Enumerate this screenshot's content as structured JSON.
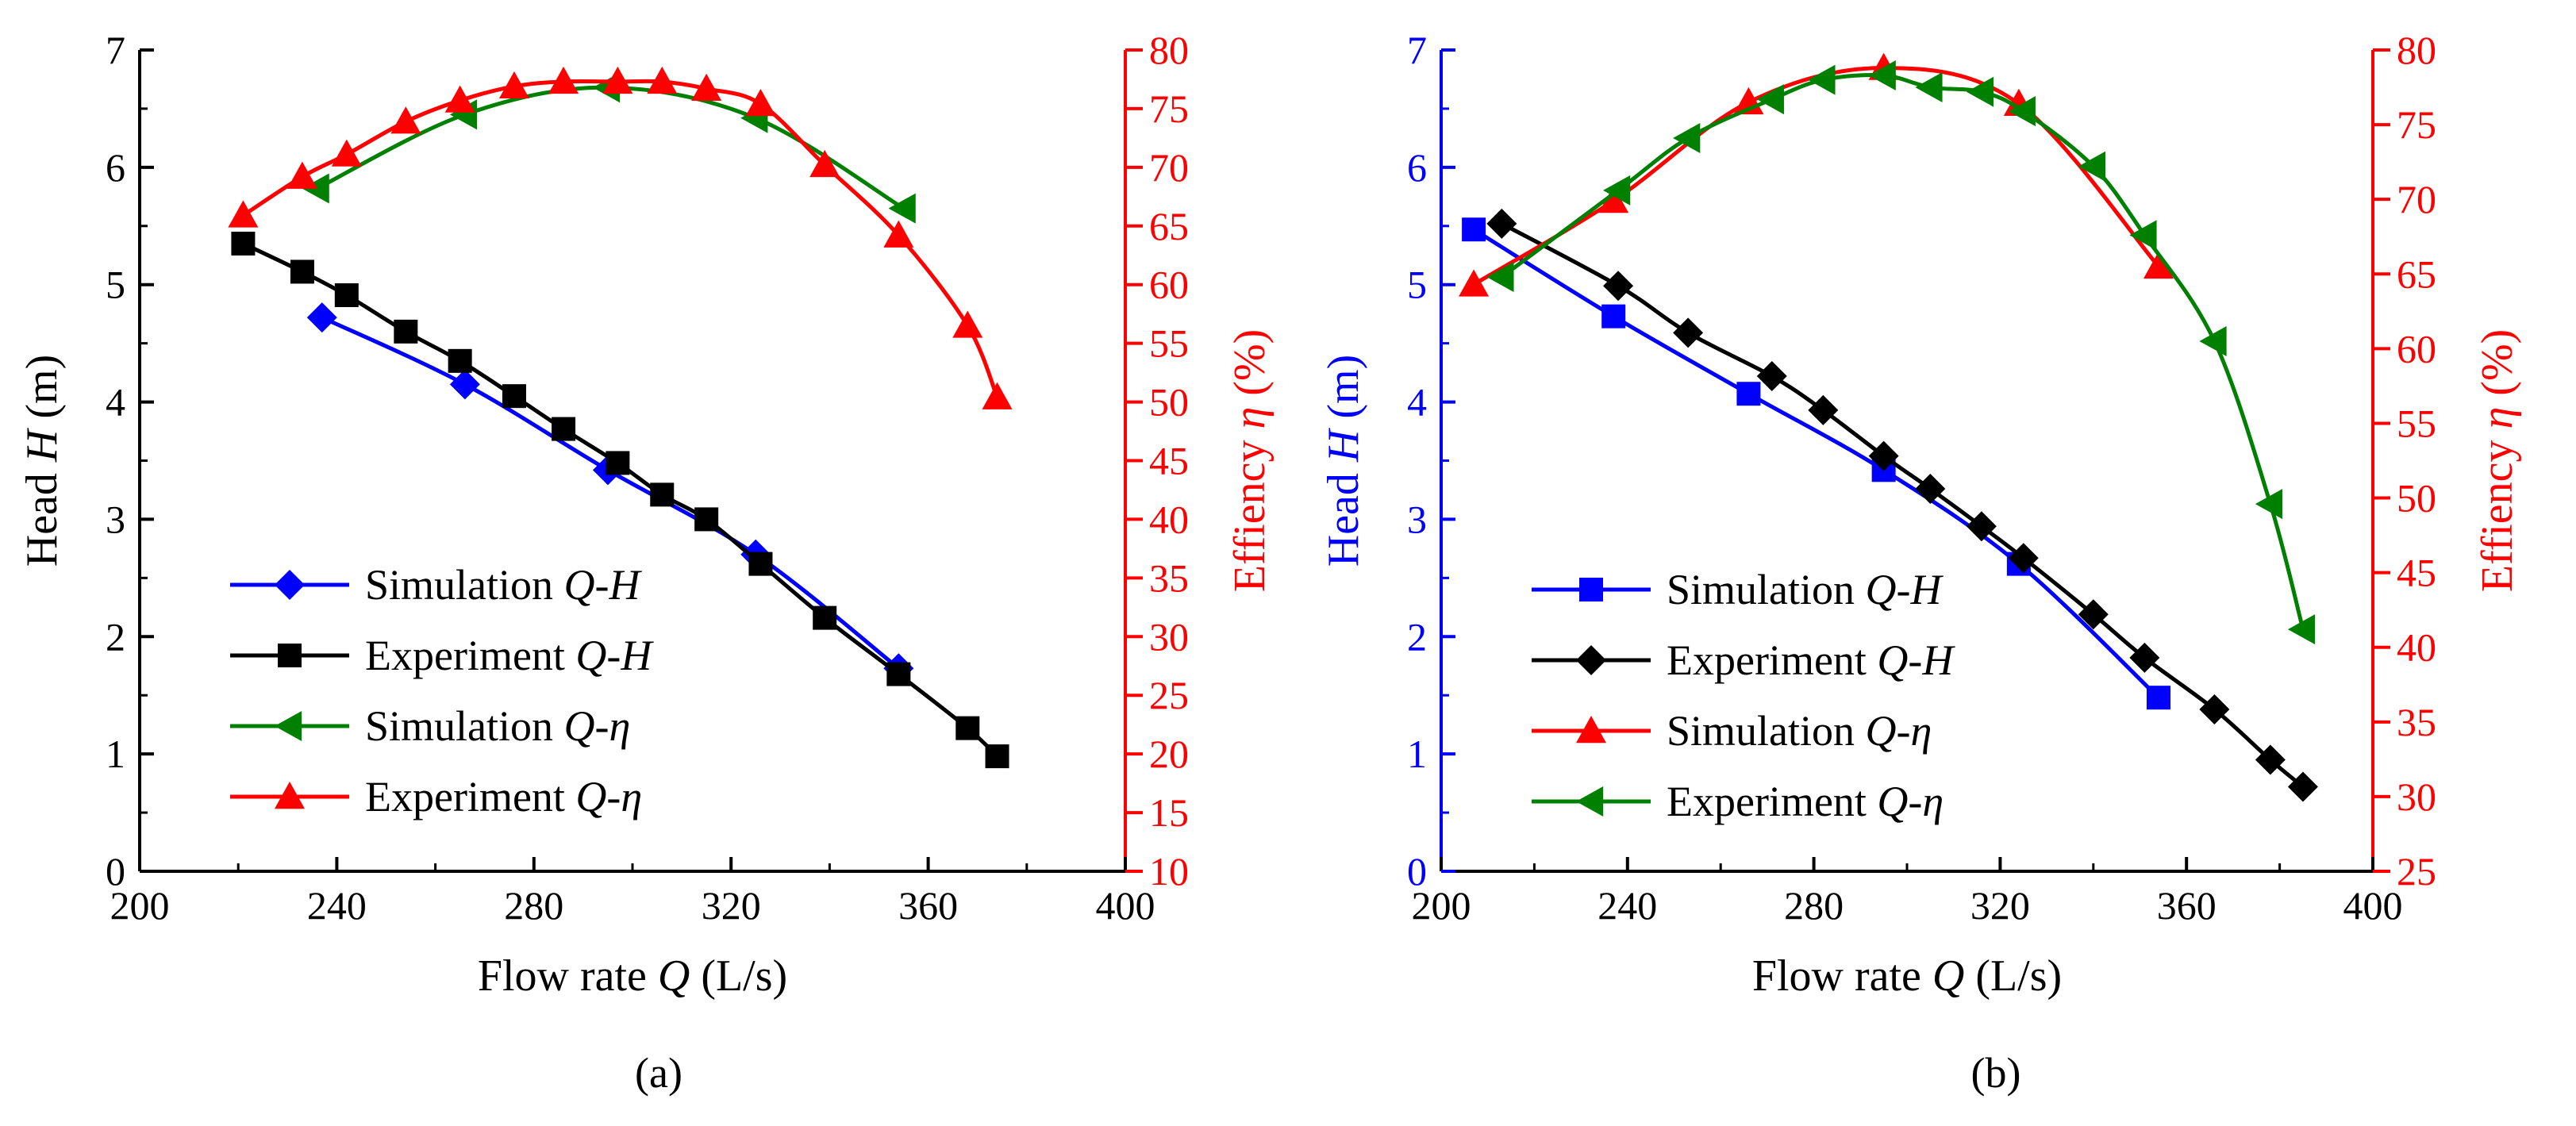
{
  "colors": {
    "blue": "#0000ff",
    "black": "#000000",
    "green": "#008000",
    "red": "#ff0000"
  },
  "chart_data": [
    {
      "type": "line",
      "panel_label": "(a)",
      "xlabel": "Flow rate Q (L/s)",
      "ylabel": "Head H (m)",
      "y2label": "Effiency η (%)",
      "xlim": [
        200,
        400
      ],
      "ylim": [
        0,
        7
      ],
      "y2lim": [
        10,
        80
      ],
      "x_ticks": [
        "200",
        "240",
        "280",
        "320",
        "360",
        "400"
      ],
      "y_ticks": [
        "0",
        "1",
        "2",
        "3",
        "4",
        "5",
        "6",
        "7"
      ],
      "y2_ticks": [
        "10",
        "15",
        "20",
        "25",
        "30",
        "35",
        "40",
        "45",
        "50",
        "55",
        "60",
        "65",
        "70",
        "75",
        "80"
      ],
      "left_axis_color": "#000000",
      "grid": false,
      "legend_position": "bottom-left",
      "series": [
        {
          "name": "Simulation Q-H",
          "axis": "left",
          "color": "#0000ff",
          "marker": "diamond",
          "x": [
            237,
            266,
            295,
            325,
            354
          ],
          "y": [
            4.72,
            4.15,
            3.42,
            2.7,
            1.73
          ]
        },
        {
          "name": "Experiment Q-H",
          "axis": "left",
          "color": "#000000",
          "marker": "square",
          "x": [
            221,
            233,
            242,
            254,
            265,
            276,
            286,
            297,
            306,
            315,
            326,
            339,
            354,
            368,
            374
          ],
          "y": [
            5.35,
            5.11,
            4.91,
            4.6,
            4.35,
            4.05,
            3.77,
            3.48,
            3.21,
            3.0,
            2.62,
            2.16,
            1.68,
            1.22,
            0.98
          ]
        },
        {
          "name": "Simulation Q-η",
          "axis": "right",
          "color": "#008000",
          "marker": "triangle-left",
          "x": [
            236,
            266,
            295,
            325,
            355
          ],
          "y": [
            68.2,
            74.5,
            76.8,
            74.2,
            66.5
          ]
        },
        {
          "name": "Experiment Q-η",
          "axis": "right",
          "color": "#ff0000",
          "marker": "triangle-up",
          "x": [
            221,
            233,
            242,
            254,
            265,
            276,
            286,
            297,
            306,
            315,
            326,
            339,
            354,
            368,
            374
          ],
          "y": [
            65.9,
            69.2,
            71.1,
            73.9,
            75.7,
            76.9,
            77.3,
            77.3,
            77.3,
            76.7,
            75.4,
            70.2,
            64.2,
            56.5,
            50.4
          ]
        }
      ]
    },
    {
      "type": "line",
      "panel_label": "(b)",
      "xlabel": "Flow rate Q (L/s)",
      "ylabel": "Head H (m)",
      "y2label": "Effiency η (%)",
      "xlim": [
        200,
        400
      ],
      "ylim": [
        0,
        7
      ],
      "y2lim": [
        25,
        80
      ],
      "x_ticks": [
        "200",
        "240",
        "280",
        "320",
        "360",
        "400"
      ],
      "y_ticks": [
        "0",
        "1",
        "2",
        "3",
        "4",
        "5",
        "6",
        "7"
      ],
      "y2_ticks": [
        "25",
        "30",
        "35",
        "40",
        "45",
        "50",
        "55",
        "60",
        "65",
        "70",
        "75",
        "80"
      ],
      "left_axis_color": "#0000ff",
      "grid": false,
      "legend_position": "bottom-left",
      "series": [
        {
          "name": "Simulation Q-H",
          "axis": "left",
          "color": "#0000ff",
          "marker": "square",
          "x": [
            207,
            237,
            266,
            295,
            324,
            354
          ],
          "y": [
            5.47,
            4.73,
            4.07,
            3.42,
            2.62,
            1.48
          ]
        },
        {
          "name": "Experiment Q-H",
          "axis": "left",
          "color": "#000000",
          "marker": "diamond",
          "x": [
            213,
            238,
            253,
            271,
            282,
            295,
            305,
            316,
            325,
            340,
            351,
            366,
            378,
            385
          ],
          "y": [
            5.52,
            4.99,
            4.59,
            4.22,
            3.93,
            3.54,
            3.26,
            2.94,
            2.67,
            2.19,
            1.82,
            1.38,
            0.95,
            0.72
          ]
        },
        {
          "name": "Simulation Q-η",
          "axis": "right",
          "color": "#ff0000",
          "marker": "triangle-up",
          "x": [
            207,
            237,
            266,
            295,
            324,
            354
          ],
          "y": [
            64.3,
            69.9,
            76.5,
            78.8,
            76.4,
            65.5
          ]
        },
        {
          "name": "Experiment Q-η",
          "axis": "right",
          "color": "#008000",
          "marker": "triangle-left",
          "x": [
            213,
            238,
            253,
            271,
            282,
            295,
            305,
            316,
            325,
            340,
            351,
            366,
            378,
            385
          ],
          "y": [
            64.8,
            70.6,
            74.1,
            76.7,
            78.0,
            78.3,
            77.5,
            77.2,
            75.9,
            72.2,
            67.6,
            60.5,
            49.6,
            41.2
          ]
        }
      ]
    }
  ]
}
